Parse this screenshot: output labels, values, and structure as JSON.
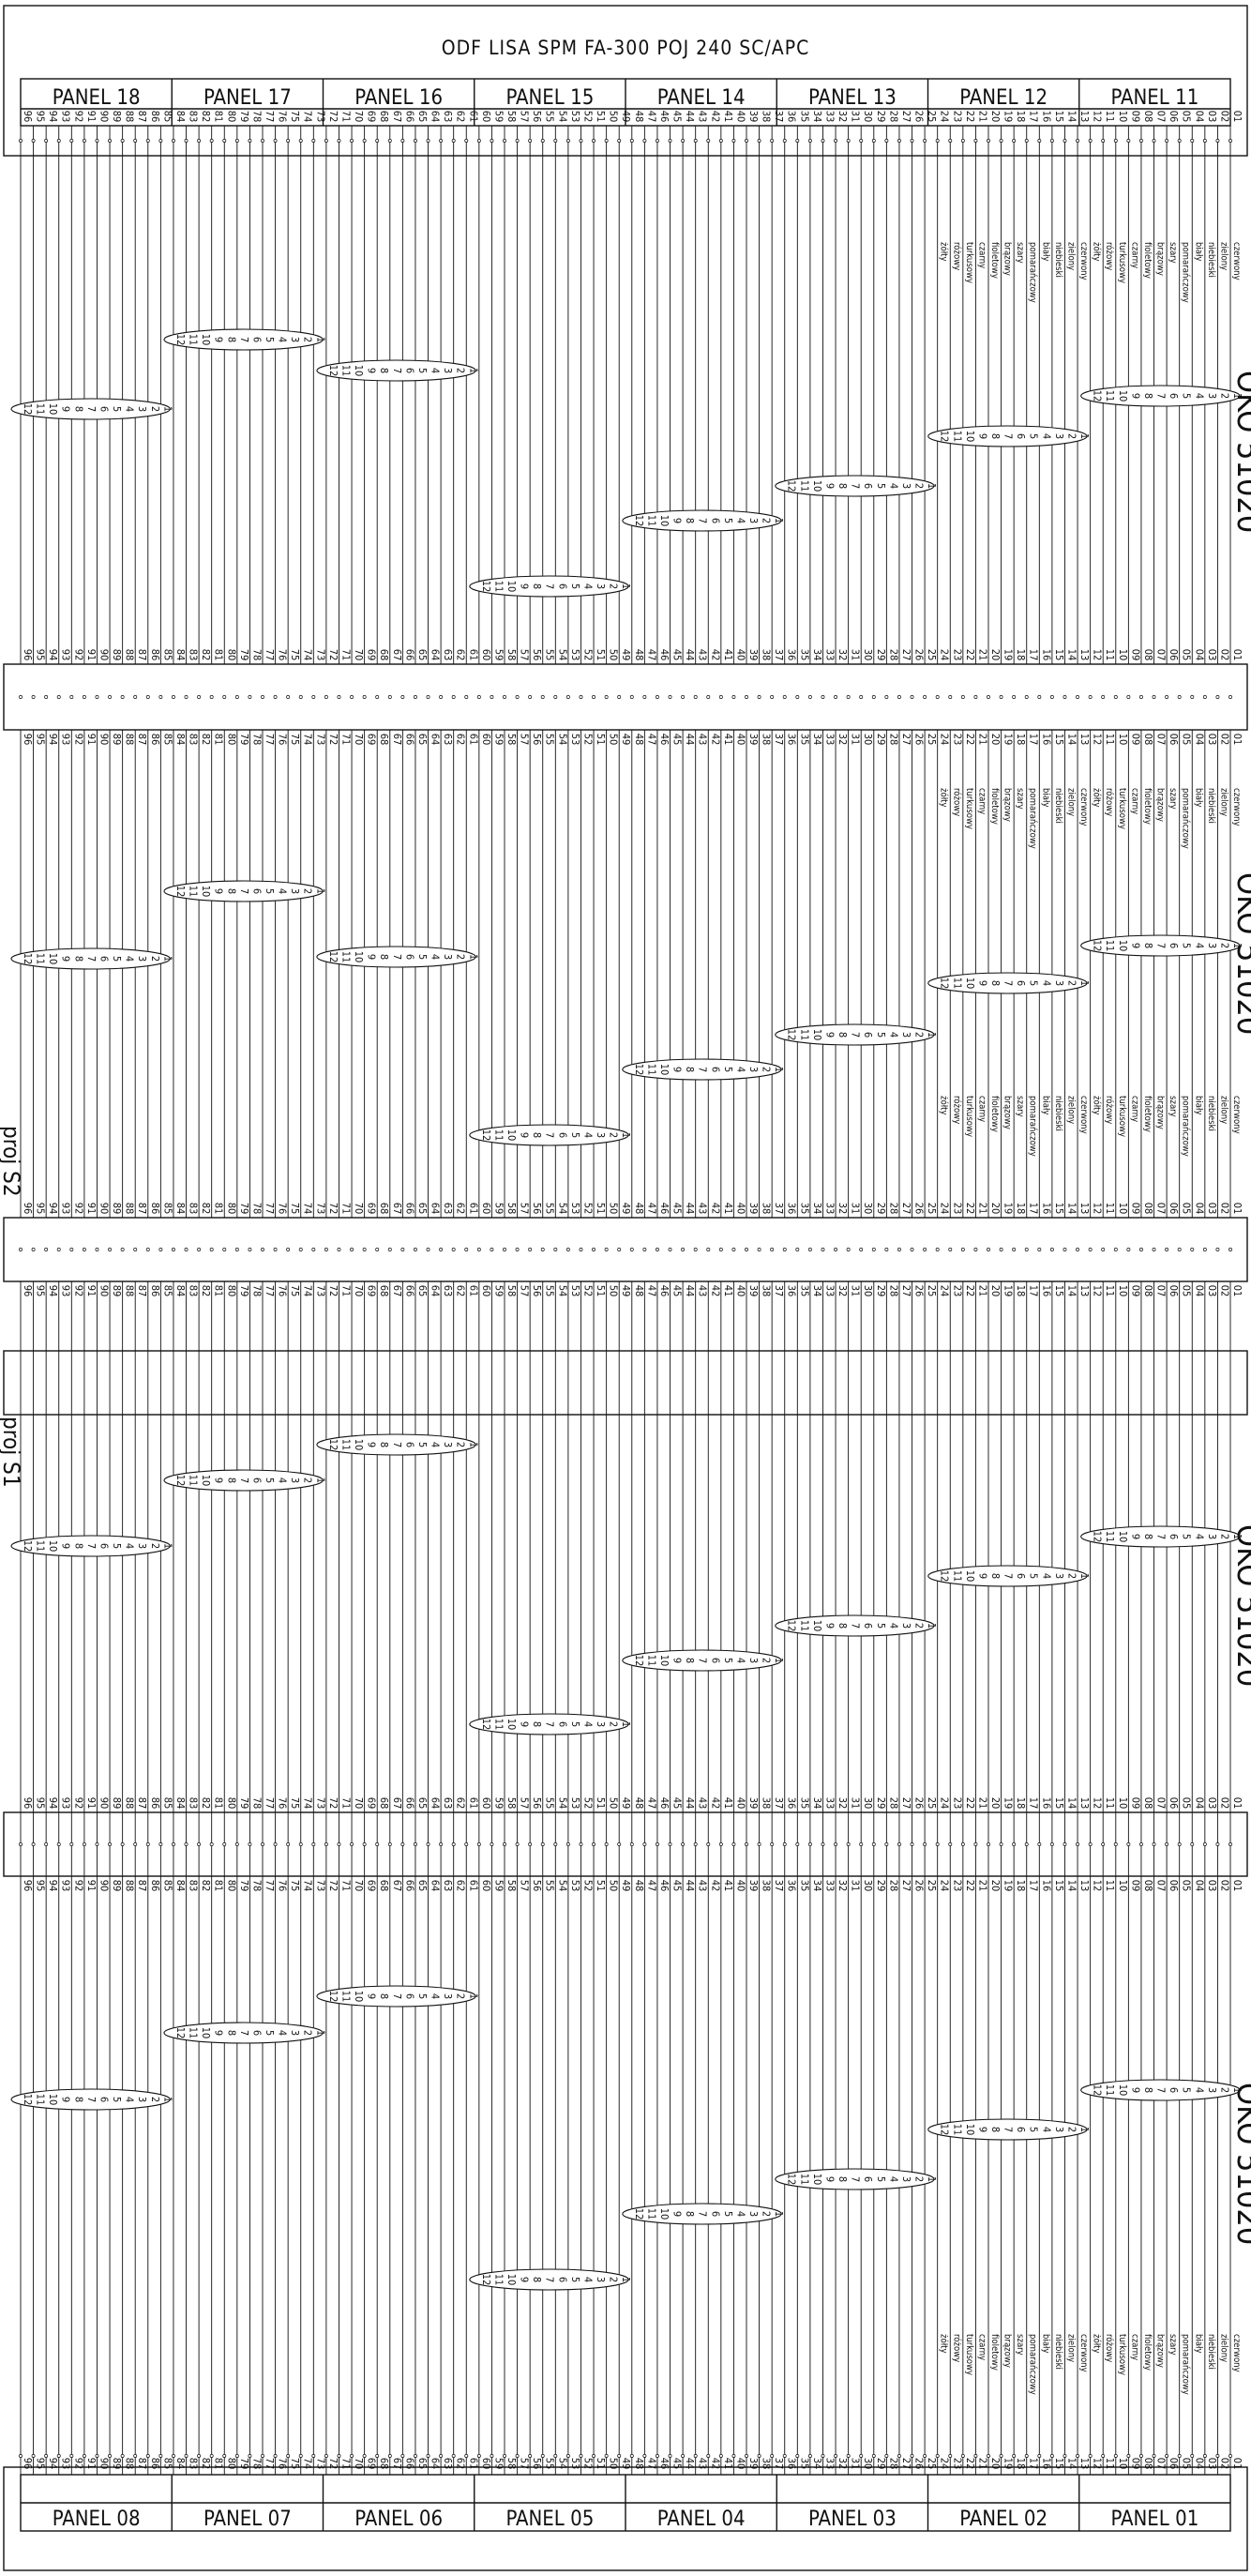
{
  "title": "ODF LISA SPM FA-300 POJ 240 SC/APC",
  "top_panels": [
    "PANEL 18",
    "PANEL 17",
    "PANEL 16",
    "PANEL 15",
    "PANEL 14",
    "PANEL 13",
    "PANEL 12",
    "PANEL 11"
  ],
  "bottom_panels": [
    "PANEL 08",
    "PANEL 07",
    "PANEL 06",
    "PANEL 05",
    "PANEL 04",
    "PANEL 03",
    "PANEL 02",
    "PANEL 01"
  ],
  "cable_label": "OKO 51020",
  "project_labels": [
    "proj S2",
    "proj S1"
  ],
  "fiber_colors": [
    "czerwony",
    "zielony",
    "niebieski",
    "biały",
    "pomarańczowy",
    "szary",
    "brązowy",
    "fioletowy",
    "czarny",
    "turkusowy",
    "różowy",
    "żółty"
  ],
  "tube_numbers": [
    "1",
    "2",
    "3",
    "4",
    "5",
    "6",
    "7",
    "8",
    "9",
    "10",
    "11",
    "12"
  ],
  "fiber_count": 96
}
